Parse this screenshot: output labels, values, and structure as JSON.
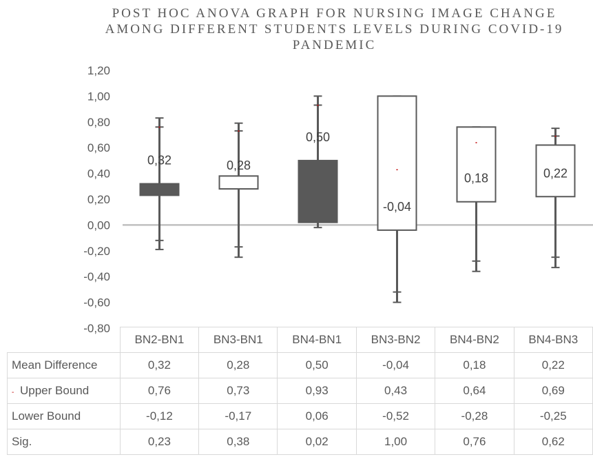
{
  "chart_data": {
    "type": "box",
    "title": "POST HOC ANOVA GRAPH FOR NURSING IMAGE CHANGE\nAMONG DIFFERENT STUDENTS LEVELS DURING COVID-19\nPANDEMIC",
    "ylim": [
      -0.8,
      1.2
    ],
    "yticks": [
      1.2,
      1.0,
      0.8,
      0.6,
      0.4,
      0.2,
      0.0,
      -0.2,
      -0.4,
      -0.6,
      -0.8
    ],
    "ytick_labels": [
      "1,20",
      "1,00",
      "0,80",
      "0,60",
      "0,40",
      "0,20",
      "0,00",
      "-0,20",
      "-0,40",
      "-0,60",
      "-0,80"
    ],
    "categories": [
      "BN2-BN1",
      "BN3-BN1",
      "BN4-BN1",
      "BN3-BN2",
      "BN4-BN2",
      "BN4-BN3"
    ],
    "series": [
      {
        "name": "Mean Difference",
        "values": [
          0.32,
          0.28,
          0.5,
          -0.04,
          0.18,
          0.22
        ],
        "labels": [
          "0,32",
          "0,28",
          "0,50",
          "-0,04",
          "0,18",
          "0,22"
        ]
      },
      {
        "name": "Upper Bound",
        "values": [
          0.76,
          0.73,
          0.93,
          0.43,
          0.64,
          0.69
        ],
        "labels": [
          "0,76",
          "0,73",
          "0,93",
          "0,43",
          "0,64",
          "0,69"
        ]
      },
      {
        "name": "Lower Bound",
        "values": [
          -0.12,
          -0.17,
          0.06,
          -0.52,
          -0.28,
          -0.25
        ],
        "labels": [
          "-0,12",
          "-0,17",
          "0,06",
          "-0,52",
          "-0,28",
          "-0,25"
        ]
      },
      {
        "name": "Sig.",
        "values": [
          0.23,
          0.38,
          0.02,
          1.0,
          0.76,
          0.62
        ],
        "labels": [
          "0,23",
          "0,38",
          "0,02",
          "1,00",
          "0,76",
          "0,62"
        ]
      }
    ],
    "whiskers": [
      {
        "max": 0.83,
        "min": -0.19
      },
      {
        "max": 0.79,
        "min": -0.25
      },
      {
        "max": 1.0,
        "min": -0.02
      },
      {
        "max": 1.0,
        "min": -0.6
      },
      {
        "max": 0.76,
        "min": -0.36
      },
      {
        "max": 0.75,
        "min": -0.33
      }
    ],
    "box_colors": [
      "#595959",
      "#ffffff",
      "#595959",
      "#ffffff",
      "#ffffff",
      "#ffffff"
    ],
    "whisker_color": "#595959",
    "axis_color": "#bfbfbf",
    "marker_color": "#c00000",
    "grid": false,
    "legend": "data-table"
  }
}
